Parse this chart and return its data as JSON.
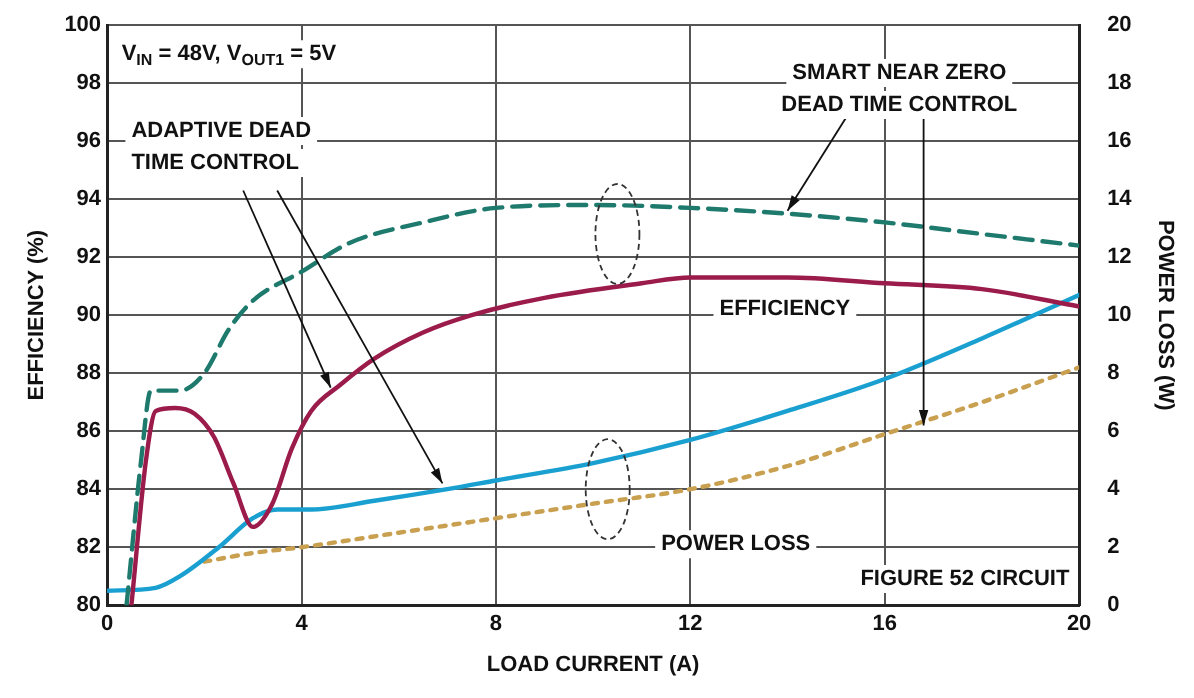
{
  "chart_data": {
    "type": "line",
    "xlabel": "LOAD CURRENT (A)",
    "ylabel": "EFFICIENCY (%)",
    "y2label": "POWER LOSS (W)",
    "xlim": [
      0,
      20
    ],
    "xticks": [
      0,
      4,
      8,
      12,
      16,
      20
    ],
    "ylim": [
      80,
      100
    ],
    "yticks": [
      80,
      82,
      84,
      86,
      88,
      90,
      92,
      94,
      96,
      98,
      100
    ],
    "y2lim": [
      0,
      20
    ],
    "y2ticks": [
      0,
      2,
      4,
      6,
      8,
      10,
      12,
      14,
      16,
      18,
      20
    ],
    "grid": true,
    "legend": false,
    "marker": "none",
    "annotations": [
      "V$_{IN}$ = 48V, V$_{OUT1}$ = 5V",
      {
        "text": "ADAPTIVE DEAD TIME CONTROL",
        "x": 4.6,
        "y": 87.5
      },
      {
        "text": "SMART NEAR ZERO DEAD TIME CONTROL",
        "x": 14,
        "y": 93.6
      },
      "EFFICIENCY",
      "POWER LOSS",
      "FIGURE 52 CIRCUIT"
    ],
    "series": [
      {
        "color": "#9b1b4b",
        "line_style": "solid",
        "x": [
          0.5,
          0.8,
          1.0,
          1.4,
          1.8,
          2.2,
          2.6,
          3.0,
          3.4,
          3.8,
          4.2,
          4.8,
          5.5,
          6.5,
          7.5,
          9,
          11,
          12,
          14,
          16,
          18,
          20
        ],
        "values": [
          80,
          85,
          86.7,
          86.8,
          86.6,
          85.8,
          84.2,
          82.7,
          83.5,
          85.4,
          86.7,
          87.6,
          88.5,
          89.4,
          90,
          90.6,
          91.1,
          91.3,
          91.3,
          91.1,
          90.9,
          90.3
        ]
      },
      {
        "color": "#1f7a6e",
        "line_style": "dashed",
        "x": [
          0.4,
          0.7,
          0.9,
          1.5,
          2,
          2.5,
          3,
          4,
          5,
          6.5,
          8,
          10,
          12,
          14,
          16,
          18,
          20
        ],
        "values": [
          80,
          85,
          87.4,
          87.4,
          88,
          89.5,
          90.5,
          91.5,
          92.5,
          93.2,
          93.7,
          93.8,
          93.7,
          93.5,
          93.2,
          92.8,
          92.4
        ]
      },
      {
        "color": "#1aa0d0",
        "line_style": "solid",
        "axis": "y2",
        "x": [
          0,
          1,
          1.5,
          2.3,
          3,
          3.5,
          4.2,
          5.5,
          7,
          8,
          10,
          12,
          14,
          16,
          18,
          20
        ],
        "values": [
          0.5,
          0.6,
          1.0,
          2.0,
          3.0,
          3.3,
          3.3,
          3.6,
          4.0,
          4.3,
          4.9,
          5.7,
          6.7,
          7.8,
          9.2,
          10.7
        ]
      },
      {
        "color": "#c8a050",
        "line_style": "dotted",
        "axis": "y2",
        "x": [
          2,
          3,
          4,
          6,
          8,
          10,
          12,
          14,
          16,
          18,
          20
        ],
        "values": [
          1.5,
          1.8,
          2.0,
          2.5,
          3.0,
          3.5,
          4.0,
          4.8,
          5.9,
          7.0,
          8.2
        ]
      }
    ]
  }
}
